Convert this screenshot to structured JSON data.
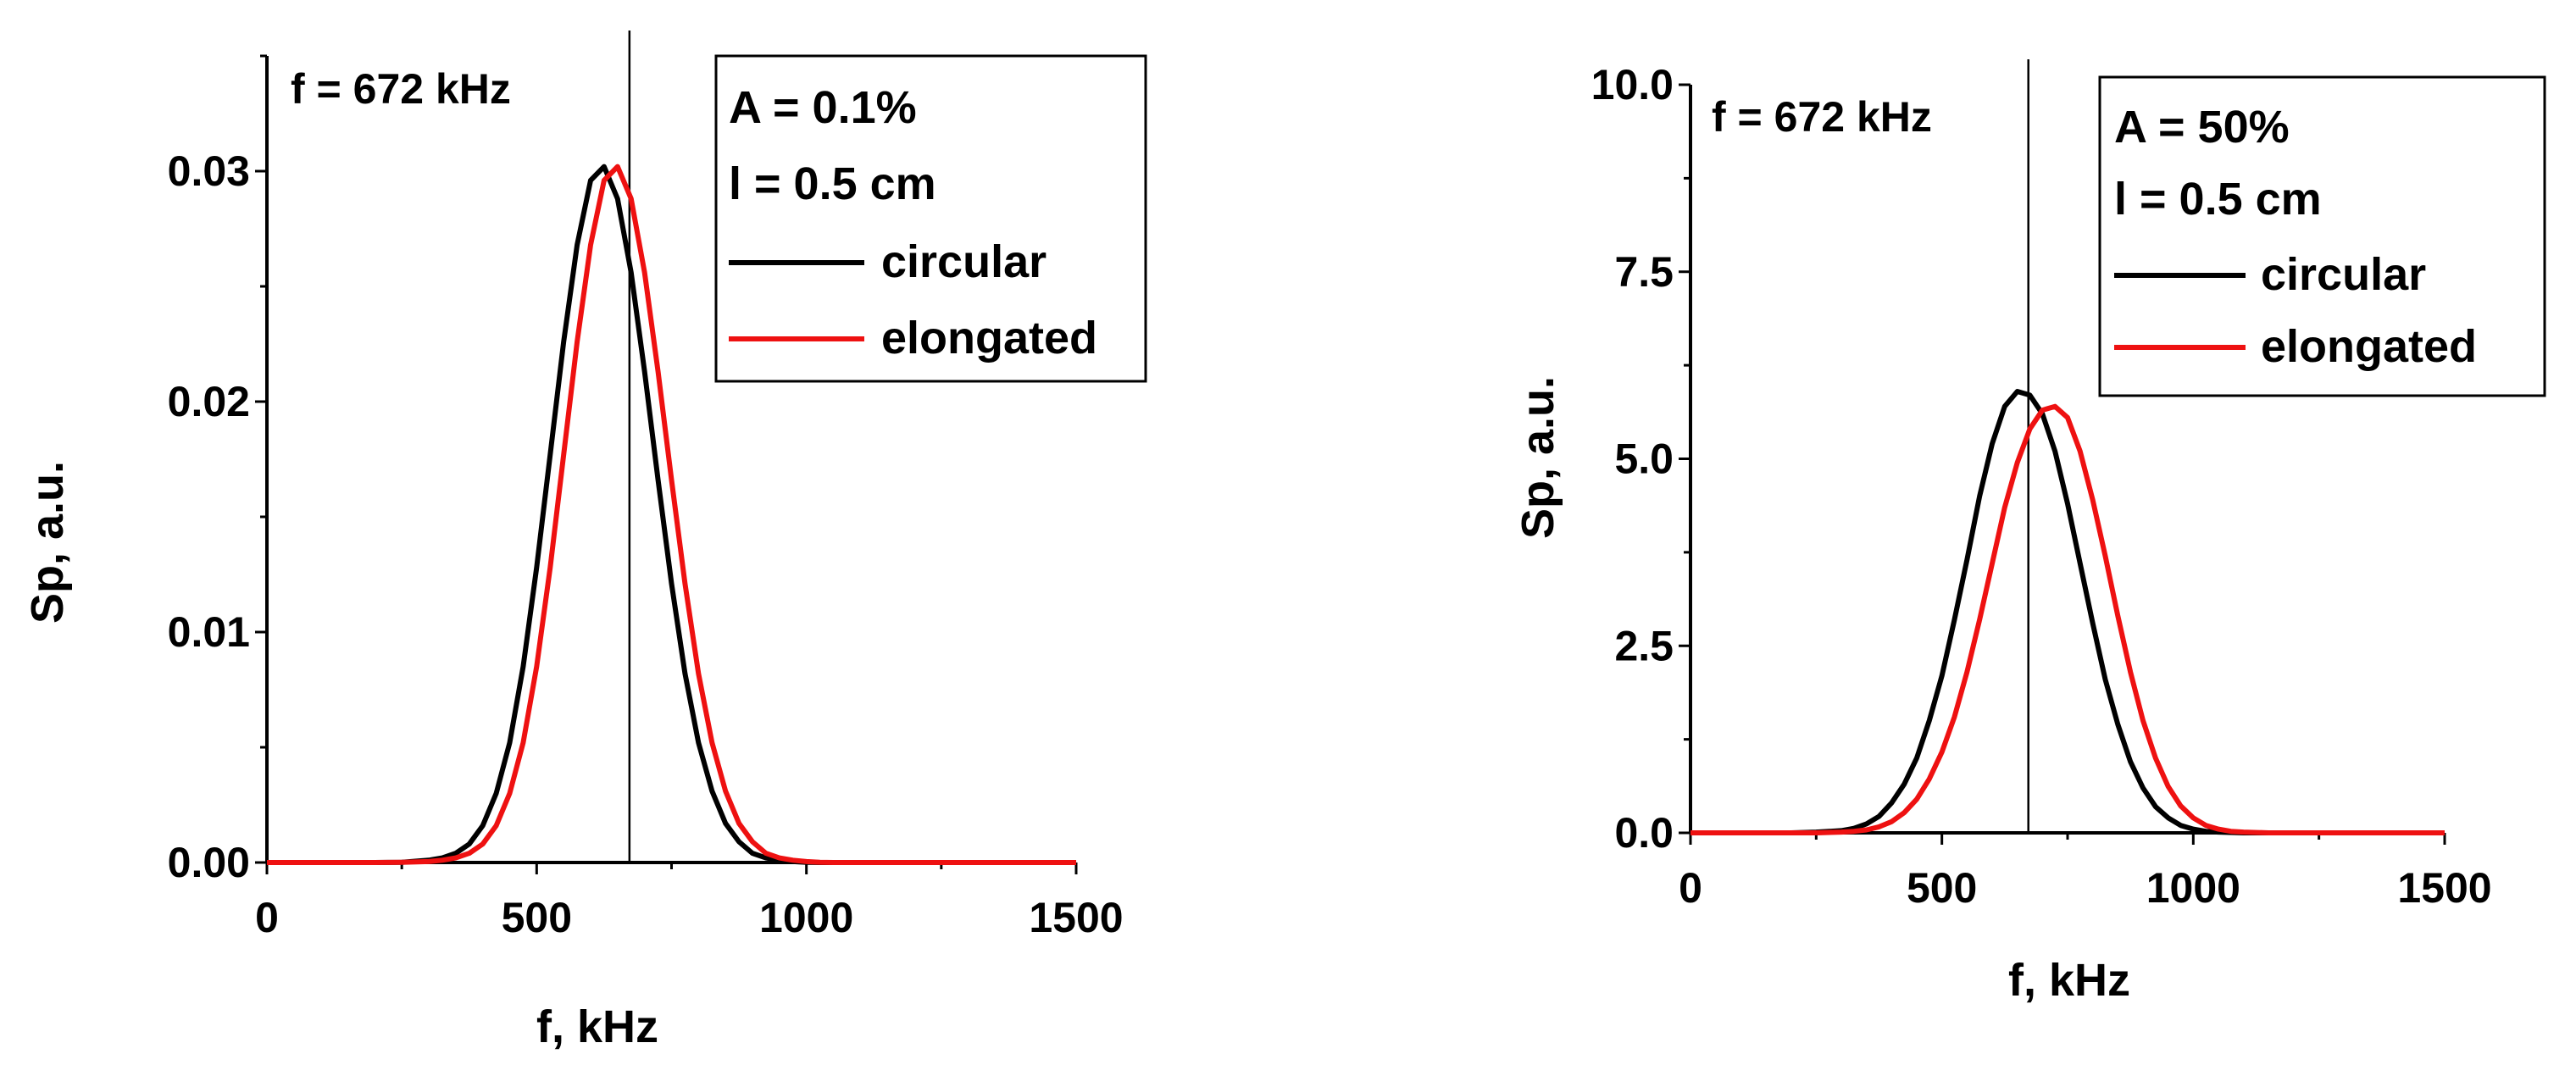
{
  "colors": {
    "circular": "#000000",
    "elongated": "#ee1111",
    "axis": "#000000"
  },
  "chart_data": [
    {
      "type": "line",
      "xlabel": "f, kHz",
      "ylabel": "Sp, a.u.",
      "xlim": [
        0,
        1500
      ],
      "ylim": [
        0,
        0.035
      ],
      "xticks": [
        0,
        500,
        1000,
        1500
      ],
      "xtick_labels": [
        "0",
        "500",
        "1000",
        "1500"
      ],
      "yticks": [
        0,
        0.01,
        0.02,
        0.03
      ],
      "ytick_labels": [
        "0.00",
        "0.01",
        "0.02",
        "0.03"
      ],
      "vline": {
        "x": 672,
        "label": "f = 672 kHz"
      },
      "legend": {
        "position": "top-right",
        "header": [
          "A = 0.1%",
          "l = 0.5 cm"
        ]
      },
      "series": [
        {
          "name": "circular",
          "color_key": "circular",
          "x": [
            0,
            100,
            200,
            250,
            300,
            325,
            350,
            375,
            400,
            425,
            450,
            475,
            500,
            525,
            550,
            575,
            600,
            625,
            650,
            675,
            700,
            725,
            750,
            775,
            800,
            825,
            850,
            875,
            900,
            925,
            950,
            975,
            1000,
            1025,
            1050,
            1075,
            1100,
            1200,
            1500
          ],
          "y": [
            0,
            0,
            0,
            1e-05,
            0.0001,
            0.0002,
            0.0004,
            0.0008,
            0.0016,
            0.003,
            0.0052,
            0.0085,
            0.0128,
            0.0177,
            0.0226,
            0.0268,
            0.0296,
            0.0302,
            0.0288,
            0.0256,
            0.0213,
            0.0166,
            0.0121,
            0.0082,
            0.0052,
            0.0031,
            0.0017,
            0.0009,
            0.0004,
            0.0002,
            0.0001,
            4e-05,
            1e-05,
            0,
            0,
            0,
            0,
            0,
            0
          ]
        },
        {
          "name": "elongated",
          "color_key": "elongated",
          "x": [
            0,
            100,
            200,
            250,
            300,
            325,
            350,
            375,
            400,
            425,
            450,
            475,
            500,
            525,
            550,
            575,
            600,
            625,
            650,
            675,
            700,
            725,
            750,
            775,
            800,
            825,
            850,
            875,
            900,
            925,
            950,
            975,
            1000,
            1025,
            1050,
            1075,
            1100,
            1200,
            1500
          ],
          "y": [
            0,
            0,
            0,
            1e-05,
            4e-05,
            0.0001,
            0.0002,
            0.0004,
            0.0008,
            0.0016,
            0.003,
            0.0052,
            0.0085,
            0.0128,
            0.0177,
            0.0226,
            0.0268,
            0.0296,
            0.0302,
            0.0288,
            0.0256,
            0.0213,
            0.0166,
            0.0121,
            0.0082,
            0.0052,
            0.0031,
            0.0017,
            0.0009,
            0.0004,
            0.0002,
            0.0001,
            4e-05,
            1e-05,
            0,
            0,
            0,
            0,
            0
          ]
        }
      ]
    },
    {
      "type": "line",
      "xlabel": "f, kHz",
      "ylabel": "Sp, a.u.",
      "xlim": [
        0,
        1500
      ],
      "ylim": [
        0,
        10
      ],
      "xticks": [
        0,
        500,
        1000,
        1500
      ],
      "xtick_labels": [
        "0",
        "500",
        "1000",
        "1500"
      ],
      "yticks": [
        0,
        2.5,
        5,
        7.5,
        10
      ],
      "ytick_labels": [
        "0.0",
        "2.5",
        "5.0",
        "7.5",
        "10.0"
      ],
      "vline": {
        "x": 672,
        "label": "f = 672 kHz"
      },
      "legend": {
        "position": "top-right",
        "header": [
          "A = 50%",
          "l = 0.5 cm"
        ]
      },
      "series": [
        {
          "name": "circular",
          "color_key": "circular",
          "x": [
            0,
            200,
            250,
            300,
            325,
            350,
            375,
            400,
            425,
            450,
            475,
            500,
            525,
            550,
            575,
            600,
            625,
            650,
            675,
            700,
            725,
            750,
            775,
            800,
            825,
            850,
            875,
            900,
            925,
            950,
            975,
            1000,
            1025,
            1050,
            1100,
            1500
          ],
          "y": [
            0,
            0,
            0.01,
            0.03,
            0.06,
            0.12,
            0.22,
            0.4,
            0.65,
            1.0,
            1.5,
            2.1,
            2.85,
            3.65,
            4.5,
            5.2,
            5.7,
            5.9,
            5.85,
            5.6,
            5.1,
            4.4,
            3.6,
            2.8,
            2.05,
            1.45,
            0.95,
            0.6,
            0.35,
            0.2,
            0.1,
            0.05,
            0.02,
            0.01,
            0,
            0
          ]
        },
        {
          "name": "elongated",
          "color_key": "elongated",
          "x": [
            0,
            250,
            300,
            325,
            350,
            375,
            400,
            425,
            450,
            475,
            500,
            525,
            550,
            575,
            600,
            625,
            650,
            675,
            700,
            725,
            750,
            775,
            800,
            825,
            850,
            875,
            900,
            925,
            950,
            975,
            1000,
            1025,
            1050,
            1075,
            1100,
            1150,
            1200,
            1500
          ],
          "y": [
            0,
            0,
            0.01,
            0.02,
            0.04,
            0.08,
            0.15,
            0.27,
            0.45,
            0.72,
            1.08,
            1.55,
            2.15,
            2.85,
            3.6,
            4.35,
            4.95,
            5.4,
            5.65,
            5.7,
            5.55,
            5.1,
            4.45,
            3.7,
            2.9,
            2.15,
            1.5,
            1.0,
            0.62,
            0.36,
            0.2,
            0.1,
            0.05,
            0.02,
            0.01,
            0,
            0,
            0
          ]
        }
      ]
    }
  ]
}
